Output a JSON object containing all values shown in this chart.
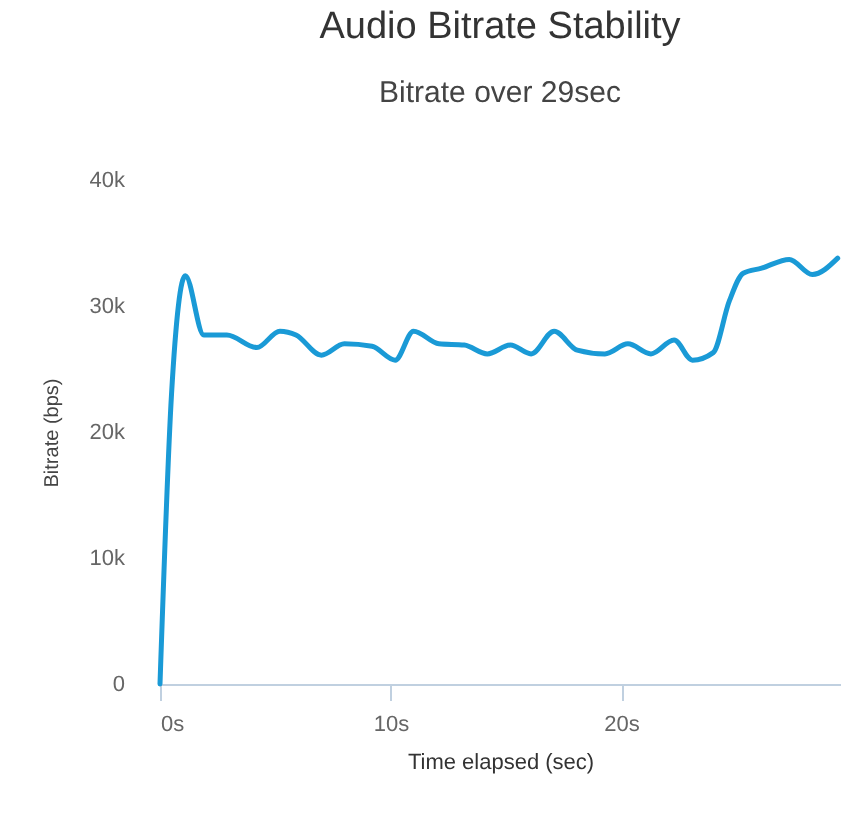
{
  "chart_data": {
    "type": "line",
    "title": "Audio Bitrate Stability",
    "subtitle": "Bitrate over 29sec",
    "xlabel": "Time elapsed (sec)",
    "ylabel": "Bitrate (bps)",
    "x": [
      0,
      0.5,
      1.1,
      1.9,
      2.9,
      4.2,
      5.2,
      5.9,
      7.0,
      8.0,
      9.2,
      10.2,
      11.0,
      12.1,
      13.2,
      14.2,
      15.2,
      16.1,
      17.1,
      18.1,
      19.3,
      20.3,
      21.3,
      22.3,
      23.1,
      24.0,
      24.7,
      25.3,
      26.1,
      27.3,
      28.3,
      29.4
    ],
    "series": [
      {
        "color": "#1a9ad6",
        "values": [
          0,
          23000,
          32400,
          27700,
          27700,
          26700,
          28000,
          27700,
          26100,
          27000,
          26800,
          25700,
          28000,
          27000,
          26900,
          26200,
          26900,
          26200,
          28000,
          26500,
          26200,
          27000,
          26200,
          27300,
          25700,
          26300,
          30400,
          32600,
          33000,
          33700,
          32500,
          33800
        ]
      }
    ],
    "xlim": [
      0,
      29.5
    ],
    "xticks": [
      {
        "value": 0,
        "label": "0s"
      },
      {
        "value": 10,
        "label": "10s"
      },
      {
        "value": 20,
        "label": "20s"
      }
    ],
    "ylim": [
      0,
      40000
    ],
    "yticks": [
      {
        "value": 0,
        "label": "0"
      },
      {
        "value": 10000,
        "label": "10k"
      },
      {
        "value": 20000,
        "label": "20k"
      },
      {
        "value": 30000,
        "label": "30k"
      },
      {
        "value": 40000,
        "label": "40k"
      }
    ],
    "grid": false,
    "marker": "none",
    "line_style": "solid"
  }
}
